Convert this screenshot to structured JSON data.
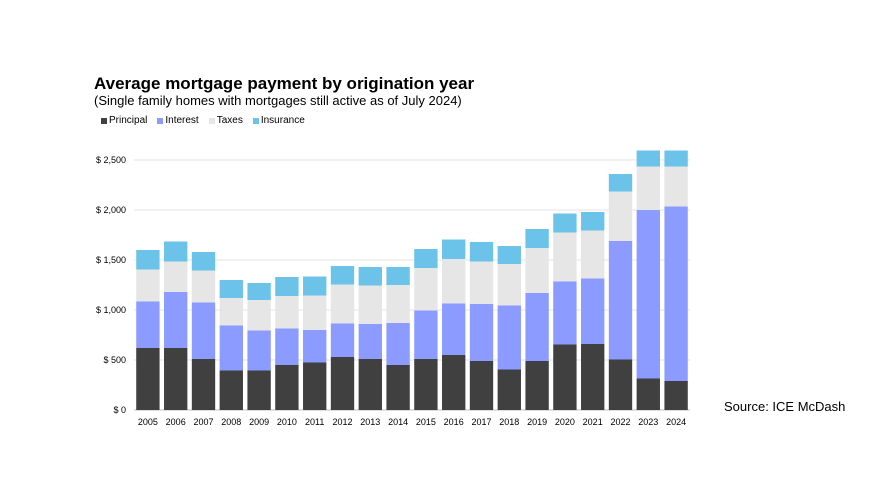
{
  "chart_data": {
    "type": "bar",
    "stacked": true,
    "title": "Average mortgage payment by origination year",
    "subtitle": "(Single family homes with mortgages still active as of July 2024)",
    "xlabel": "",
    "ylabel": "",
    "ylim": [
      0,
      2700
    ],
    "y_ticks": [
      0,
      500,
      1000,
      1500,
      2000,
      2500
    ],
    "y_tick_labels": [
      "$ 0",
      "$ 500",
      "$ 1,000",
      "$ 1,500",
      "$ 2,000",
      "$ 2,500"
    ],
    "legend_position": "top-left",
    "grid": true,
    "categories": [
      "2005",
      "2006",
      "2007",
      "2008",
      "2009",
      "2010",
      "2011",
      "2012",
      "2013",
      "2014",
      "2015",
      "2016",
      "2017",
      "2018",
      "2019",
      "2020",
      "2021",
      "2022",
      "2023",
      "2024"
    ],
    "series": [
      {
        "name": "Principal",
        "color": "#404040",
        "values": [
          620,
          620,
          510,
          395,
          395,
          450,
          475,
          530,
          510,
          450,
          510,
          550,
          490,
          405,
          490,
          655,
          660,
          505,
          315,
          290
        ]
      },
      {
        "name": "Interest",
        "color": "#8c9bff",
        "values": [
          465,
          560,
          565,
          450,
          400,
          365,
          325,
          335,
          350,
          420,
          485,
          515,
          570,
          640,
          680,
          630,
          655,
          1185,
          1685,
          1745
        ]
      },
      {
        "name": "Taxes",
        "color": "#e6e6e6",
        "values": [
          320,
          305,
          320,
          275,
          305,
          325,
          345,
          390,
          385,
          380,
          425,
          445,
          425,
          415,
          450,
          490,
          480,
          495,
          435,
          400
        ]
      },
      {
        "name": "Insurance",
        "color": "#6cc3ea",
        "values": [
          195,
          200,
          185,
          180,
          170,
          190,
          190,
          185,
          185,
          180,
          190,
          195,
          195,
          180,
          190,
          190,
          185,
          175,
          160,
          160
        ]
      }
    ]
  },
  "source": "Source: ICE McDash"
}
